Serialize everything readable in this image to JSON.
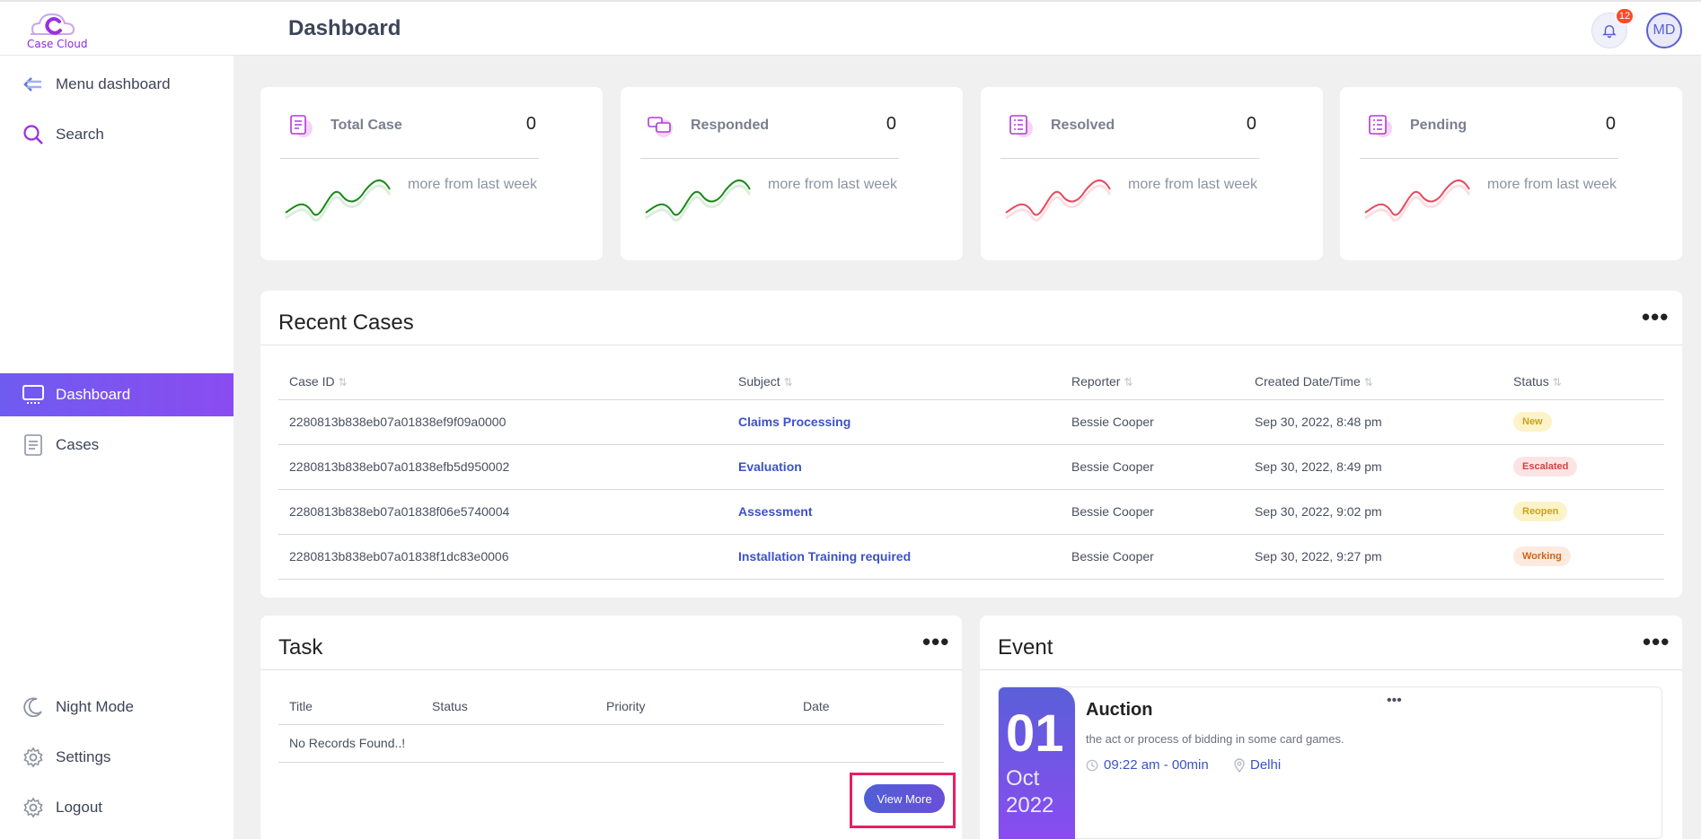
{
  "brand": {
    "name": "Case Cloud"
  },
  "header": {
    "title": "Dashboard",
    "notifications": "12",
    "avatar": "MD"
  },
  "sidebar": {
    "top_items": [
      {
        "label": "Menu dashboard",
        "icon": "arrow-left-icon"
      },
      {
        "label": "Search",
        "icon": "search-icon"
      }
    ],
    "nav_items": [
      {
        "label": "Dashboard",
        "icon": "monitor-icon",
        "active": true
      },
      {
        "label": "Cases",
        "icon": "document-icon"
      }
    ],
    "bottom_items": [
      {
        "label": "Night Mode",
        "icon": "moon-icon"
      },
      {
        "label": "Settings",
        "icon": "gear-icon"
      },
      {
        "label": "Logout",
        "icon": "logout-icon"
      }
    ]
  },
  "stats": [
    {
      "title": "Total Case",
      "value": "0",
      "note": "more from last week",
      "trend": "up",
      "icon": "document-icon"
    },
    {
      "title": "Responded",
      "value": "0",
      "note": "more from last week",
      "trend": "up",
      "icon": "chat-icon"
    },
    {
      "title": "Resolved",
      "value": "0",
      "note": "more from last week",
      "trend": "down",
      "icon": "checklist-icon"
    },
    {
      "title": "Pending",
      "value": "0",
      "note": "more from last week",
      "trend": "down",
      "icon": "checklist-icon"
    }
  ],
  "recent_cases": {
    "title": "Recent Cases",
    "columns": [
      "Case ID",
      "Subject",
      "Reporter",
      "Created Date/Time",
      "Status"
    ],
    "rows": [
      {
        "case_id": "2280813b838eb07a01838ef9f09a0000",
        "subject": "Claims Processing",
        "reporter": "Bessie Cooper",
        "created": "Sep 30, 2022, 8:48 pm",
        "status": "New"
      },
      {
        "case_id": "2280813b838eb07a01838efb5d950002",
        "subject": "Evaluation",
        "reporter": "Bessie Cooper",
        "created": "Sep 30, 2022, 8:49 pm",
        "status": "Escalated"
      },
      {
        "case_id": "2280813b838eb07a01838f06e5740004",
        "subject": "Assessment",
        "reporter": "Bessie Cooper",
        "created": "Sep 30, 2022, 9:02 pm",
        "status": "Reopen"
      },
      {
        "case_id": "2280813b838eb07a01838f1dc83e0006",
        "subject": "Installation Training required",
        "reporter": "Bessie Cooper",
        "created": "Sep 30, 2022, 9:27 pm",
        "status": "Working"
      }
    ]
  },
  "status_colors": {
    "New": {
      "bg": "#fdf3c8",
      "fg": "#c9a21a"
    },
    "Escalated": {
      "bg": "#fde4e4",
      "fg": "#d14343"
    },
    "Reopen": {
      "bg": "#fdf3c8",
      "fg": "#c9a21a"
    },
    "Working": {
      "bg": "#fdeadf",
      "fg": "#c9661a"
    }
  },
  "task": {
    "title": "Task",
    "columns": [
      "Title",
      "Status",
      "Priority",
      "Date"
    ],
    "empty_text": "No Records Found..!",
    "view_more": "View More"
  },
  "event": {
    "title": "Event",
    "item": {
      "day": "01",
      "month": "Oct",
      "year": "2022",
      "name": "Auction",
      "description": "the act or process of bidding in some card games.",
      "time": "09:22 am - 00min",
      "location": "Delhi"
    }
  },
  "colors": {
    "accent": "#6f5bf0",
    "link": "#3c52c7",
    "up": "#1a8a1a",
    "down": "#e84a5f"
  }
}
